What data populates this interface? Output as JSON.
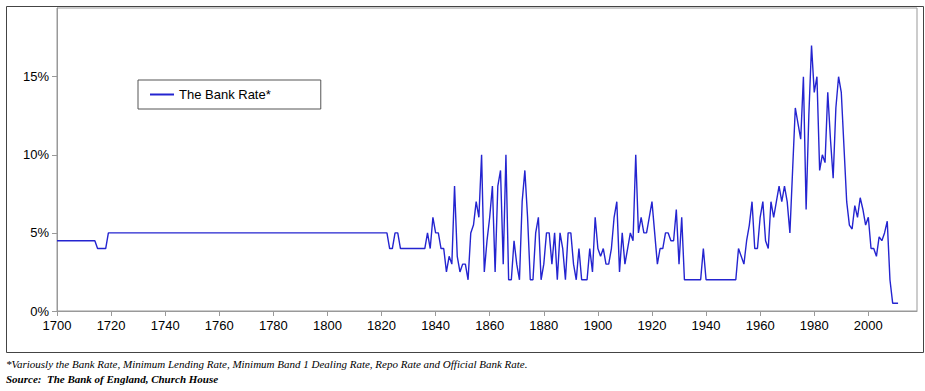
{
  "chart_data": {
    "type": "line",
    "x": [
      1700,
      1714,
      1715,
      1718,
      1719,
      1822,
      1823,
      1824,
      1825,
      1826,
      1827,
      1836,
      1837,
      1838,
      1839,
      1840,
      1841,
      1842,
      1843,
      1844,
      1845,
      1846,
      1847,
      1848,
      1849,
      1850,
      1851,
      1852,
      1853,
      1854,
      1855,
      1856,
      1857,
      1858,
      1859,
      1860,
      1861,
      1862,
      1863,
      1864,
      1865,
      1866,
      1867,
      1868,
      1869,
      1870,
      1871,
      1872,
      1873,
      1874,
      1875,
      1876,
      1877,
      1878,
      1879,
      1880,
      1881,
      1882,
      1883,
      1884,
      1885,
      1886,
      1887,
      1888,
      1889,
      1890,
      1891,
      1892,
      1893,
      1894,
      1895,
      1896,
      1897,
      1898,
      1899,
      1900,
      1901,
      1902,
      1903,
      1904,
      1905,
      1906,
      1907,
      1908,
      1909,
      1910,
      1911,
      1912,
      1913,
      1914,
      1915,
      1916,
      1917,
      1918,
      1919,
      1920,
      1921,
      1922,
      1923,
      1924,
      1925,
      1926,
      1927,
      1928,
      1929,
      1930,
      1931,
      1932,
      1938,
      1939,
      1940,
      1951,
      1952,
      1953,
      1954,
      1955,
      1956,
      1957,
      1958,
      1959,
      1960,
      1961,
      1962,
      1963,
      1964,
      1965,
      1966,
      1967,
      1968,
      1969,
      1970,
      1971,
      1972,
      1973,
      1974,
      1975,
      1976,
      1977,
      1978,
      1979,
      1980,
      1981,
      1982,
      1983,
      1984,
      1985,
      1986,
      1987,
      1988,
      1989,
      1990,
      1991,
      1992,
      1993,
      1994,
      1995,
      1996,
      1997,
      1998,
      1999,
      2000,
      2001,
      2002,
      2003,
      2004,
      2005,
      2006,
      2007,
      2008,
      2009,
      2011
    ],
    "series": [
      {
        "name": "The Bank Rate*",
        "color": "#2424d0",
        "values": [
          4.5,
          4.5,
          4,
          4,
          5,
          5,
          4,
          4,
          5,
          5,
          4,
          4,
          5,
          4,
          6,
          5,
          5,
          4,
          4,
          2.5,
          3.5,
          3,
          8,
          3.5,
          2.5,
          3,
          3,
          2,
          5,
          5.5,
          7,
          6,
          10,
          2.5,
          4.5,
          6,
          8,
          2.5,
          8,
          9,
          3,
          10,
          2,
          2,
          4.5,
          3,
          2,
          7,
          9,
          6,
          2,
          2,
          5,
          6,
          2,
          3,
          5,
          5,
          3,
          5,
          2,
          5,
          4,
          2,
          5,
          5,
          3,
          2,
          4,
          2,
          2,
          2,
          4,
          2.5,
          6,
          4,
          3.5,
          4,
          3,
          3,
          4,
          6,
          7,
          2.5,
          5,
          3,
          4,
          5,
          4.5,
          10,
          5,
          6,
          5,
          5,
          6,
          7,
          5,
          3,
          4,
          4,
          5,
          5,
          4.5,
          4.5,
          6.5,
          3,
          6,
          2,
          2,
          4,
          2,
          2,
          4,
          3.5,
          3,
          4.5,
          5.5,
          7,
          4,
          4,
          6,
          7,
          4.5,
          4,
          7,
          6,
          7,
          8,
          7,
          8,
          7,
          5,
          9,
          13,
          12,
          11,
          15,
          6.5,
          12.5,
          17,
          14,
          15,
          9,
          10,
          9.5,
          14,
          11,
          8.5,
          13,
          15,
          14,
          10.5,
          7,
          5.5,
          5.25,
          6.75,
          6,
          7.25,
          6.5,
          5.5,
          6,
          4,
          4,
          3.5,
          4.75,
          4.5,
          5,
          5.75,
          2,
          0.5,
          0.5
        ]
      }
    ],
    "xlim": [
      1700,
      2018
    ],
    "xticks": [
      1700,
      1720,
      1740,
      1760,
      1780,
      1800,
      1820,
      1840,
      1860,
      1880,
      1900,
      1920,
      1940,
      1960,
      1980,
      2000
    ],
    "ylim": [
      0,
      19.4
    ],
    "yticks": [
      {
        "value": 0,
        "label": "0%"
      },
      {
        "value": 5,
        "label": "5%"
      },
      {
        "value": 10,
        "label": "10%"
      },
      {
        "value": 15,
        "label": "15%"
      }
    ],
    "grid": false,
    "legend": "upper left",
    "annotations": [
      "*Variously the Bank Rate, Minimum Lending Rate, Minimum Band 1 Dealing Rate, Repo Rate and Official Bank Rate.",
      "Source:  The Bank of England, Church House"
    ]
  }
}
